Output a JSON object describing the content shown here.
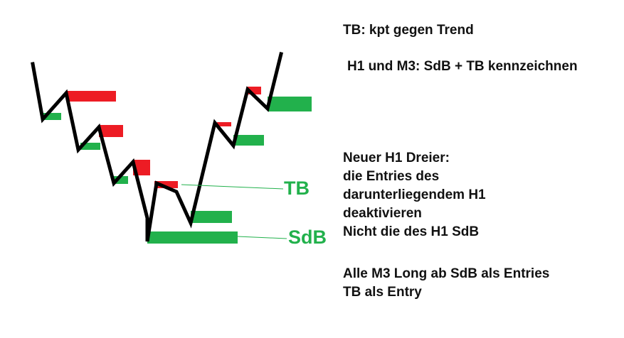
{
  "colors": {
    "zone_red": "#ed1c24",
    "zone_green": "#22b14c",
    "price_line": "#000000",
    "text": "#111111"
  },
  "labels": {
    "tb": "TB",
    "sdb": "SdB"
  },
  "notes": {
    "tb_definition": "TB: kpt gegen Trend",
    "h1_m3_marking": "H1 und M3: SdB + TB kennzeichnen",
    "new_h1_dreier": [
      "Neuer H1 Dreier:",
      "die Entries des",
      "darunterliegendem H1",
      "deaktivieren",
      "Nicht die des H1 SdB"
    ],
    "m3_long": [
      "Alle M3 Long ab SdB als Entries",
      "TB als Entry"
    ]
  }
}
